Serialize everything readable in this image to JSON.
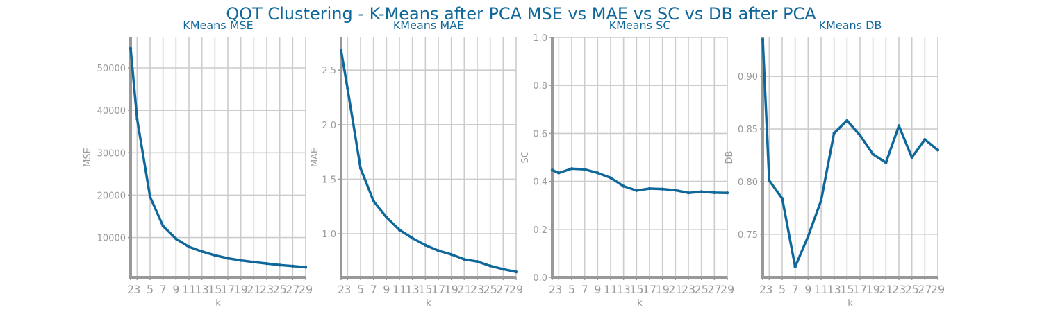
{
  "figure": {
    "title": "QOT Clustering - K-Means after PCA MSE vs MAE vs SC vs DB after PCA",
    "line_color": "#10689a",
    "grid": true
  },
  "chart_data": [
    {
      "type": "line",
      "title": "KMeans MSE",
      "xlabel": "k",
      "ylabel": "MSE",
      "x": [
        2,
        3,
        5,
        7,
        9,
        11,
        13,
        15,
        17,
        19,
        21,
        23,
        25,
        27,
        29
      ],
      "xticks": [
        "2",
        "3",
        "5",
        "7",
        "9",
        "11",
        "13",
        "15",
        "17",
        "19",
        "21",
        "23",
        "25",
        "27",
        "29"
      ],
      "xlim": [
        2,
        29
      ],
      "ylim": [
        600,
        57200
      ],
      "yticks": [
        10000,
        20000,
        30000,
        40000,
        50000
      ],
      "ytick_labels": [
        "10000",
        "20000",
        "30000",
        "40000",
        "50000"
      ],
      "series": [
        {
          "values": [
            54600,
            38000,
            19600,
            12700,
            9700,
            7800,
            6700,
            5800,
            5100,
            4600,
            4200,
            3850,
            3500,
            3250,
            3000
          ]
        }
      ]
    },
    {
      "type": "line",
      "title": "KMeans MAE",
      "xlabel": "k",
      "ylabel": "MAE",
      "x": [
        2,
        3,
        5,
        7,
        9,
        11,
        13,
        15,
        17,
        19,
        21,
        23,
        25,
        27,
        29
      ],
      "xticks": [
        "2",
        "3",
        "5",
        "7",
        "9",
        "11",
        "13",
        "15",
        "17",
        "19",
        "21",
        "23",
        "25",
        "27",
        "29"
      ],
      "xlim": [
        2,
        29
      ],
      "ylim": [
        0.6,
        2.8
      ],
      "yticks": [
        1.0,
        1.5,
        2.0,
        2.5
      ],
      "ytick_labels": [
        "1.0",
        "1.5",
        "2.0",
        "2.5"
      ],
      "series": [
        {
          "values": [
            2.68,
            2.33,
            1.6,
            1.3,
            1.15,
            1.035,
            0.96,
            0.895,
            0.845,
            0.81,
            0.765,
            0.745,
            0.705,
            0.675,
            0.65
          ]
        }
      ]
    },
    {
      "type": "line",
      "title": "KMeans SC",
      "xlabel": "k",
      "ylabel": "SC",
      "x": [
        2,
        3,
        5,
        7,
        9,
        11,
        13,
        15,
        17,
        19,
        21,
        23,
        25,
        27,
        29
      ],
      "xticks": [
        "2",
        "3",
        "5",
        "7",
        "9",
        "11",
        "13",
        "15",
        "17",
        "19",
        "21",
        "23",
        "25",
        "27",
        "29"
      ],
      "xlim": [
        2,
        29
      ],
      "ylim": [
        0.0,
        1.0
      ],
      "yticks": [
        0.0,
        0.2,
        0.4,
        0.6,
        0.8,
        1.0
      ],
      "ytick_labels": [
        "0.0",
        "0.2",
        "0.4",
        "0.6",
        "0.8",
        "1.0"
      ],
      "series": [
        {
          "values": [
            0.447,
            0.435,
            0.453,
            0.45,
            0.435,
            0.415,
            0.38,
            0.362,
            0.37,
            0.368,
            0.363,
            0.352,
            0.357,
            0.353,
            0.352
          ]
        }
      ]
    },
    {
      "type": "line",
      "title": "KMeans DB",
      "xlabel": "k",
      "ylabel": "DB",
      "x": [
        2,
        3,
        5,
        7,
        9,
        11,
        13,
        15,
        17,
        19,
        21,
        23,
        25,
        27,
        29
      ],
      "xticks": [
        "2",
        "3",
        "5",
        "7",
        "9",
        "11",
        "13",
        "15",
        "17",
        "19",
        "21",
        "23",
        "25",
        "27",
        "29"
      ],
      "xlim": [
        2,
        29
      ],
      "ylim": [
        0.709,
        0.937
      ],
      "yticks": [
        0.75,
        0.8,
        0.85,
        0.9
      ],
      "ytick_labels": [
        "0.75",
        "0.80",
        "0.85",
        "0.90"
      ],
      "series": [
        {
          "values": [
            0.935,
            0.801,
            0.784,
            0.719,
            0.748,
            0.782,
            0.846,
            0.858,
            0.844,
            0.826,
            0.818,
            0.853,
            0.823,
            0.84,
            0.83
          ]
        }
      ]
    }
  ]
}
